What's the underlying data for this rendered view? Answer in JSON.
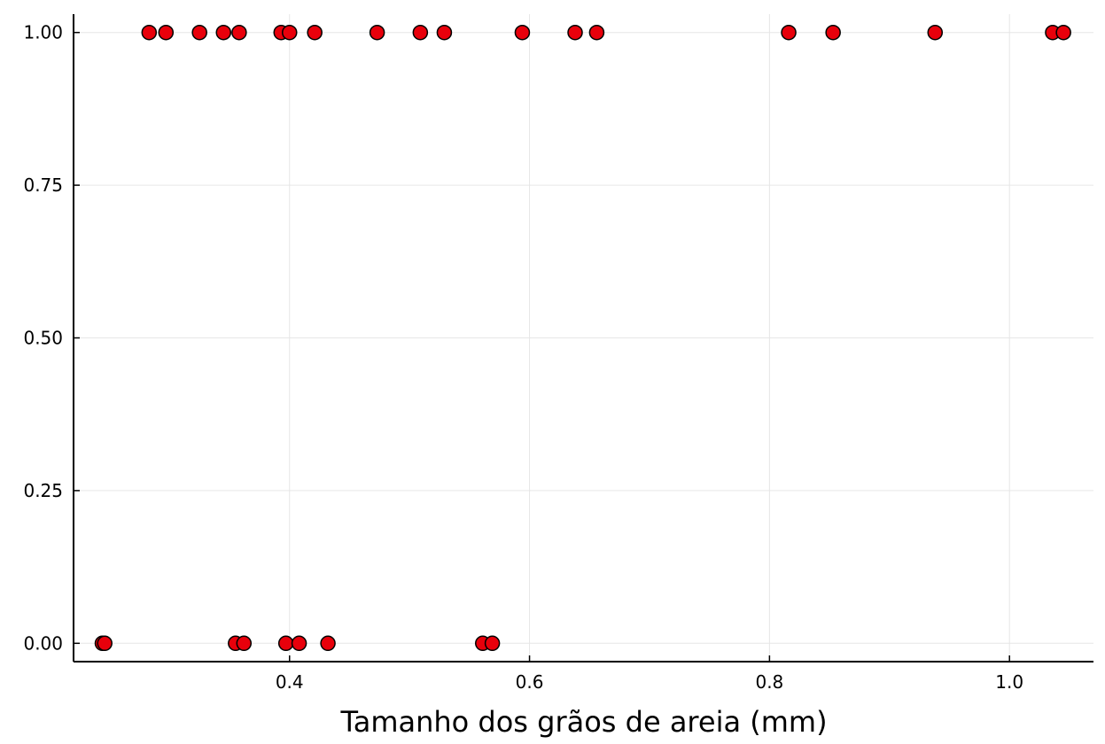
{
  "chart_data": {
    "type": "scatter",
    "title": "",
    "xlabel": "Tamanho dos grãos de areia (mm)",
    "ylabel": "",
    "xlim": [
      0.22,
      1.07
    ],
    "ylim": [
      -0.03,
      1.03
    ],
    "x_ticks": [
      0.4,
      0.6,
      0.8,
      1.0
    ],
    "x_tick_labels": [
      "0.4",
      "0.6",
      "0.8",
      "1.0"
    ],
    "y_ticks": [
      0.0,
      0.25,
      0.5,
      0.75,
      1.0
    ],
    "y_tick_labels": [
      "0.00",
      "0.25",
      "0.50",
      "0.75",
      "1.00"
    ],
    "grid": true,
    "legend": "none",
    "marker_color": "#e8000b",
    "marker_edge_color": "#000000",
    "series": [
      {
        "points": [
          {
            "x": 0.283,
            "y": 1
          },
          {
            "x": 0.297,
            "y": 1
          },
          {
            "x": 0.325,
            "y": 1
          },
          {
            "x": 0.345,
            "y": 1
          },
          {
            "x": 0.358,
            "y": 1
          },
          {
            "x": 0.393,
            "y": 1
          },
          {
            "x": 0.4,
            "y": 1
          },
          {
            "x": 0.421,
            "y": 1
          },
          {
            "x": 0.473,
            "y": 1
          },
          {
            "x": 0.509,
            "y": 1
          },
          {
            "x": 0.529,
            "y": 1
          },
          {
            "x": 0.594,
            "y": 1
          },
          {
            "x": 0.638,
            "y": 1
          },
          {
            "x": 0.656,
            "y": 1
          },
          {
            "x": 0.816,
            "y": 1
          },
          {
            "x": 0.853,
            "y": 1
          },
          {
            "x": 0.938,
            "y": 1
          },
          {
            "x": 1.036,
            "y": 1
          },
          {
            "x": 1.045,
            "y": 1
          },
          {
            "x": 0.244,
            "y": 0
          },
          {
            "x": 0.246,
            "y": 0
          },
          {
            "x": 0.355,
            "y": 0
          },
          {
            "x": 0.362,
            "y": 0
          },
          {
            "x": 0.397,
            "y": 0
          },
          {
            "x": 0.408,
            "y": 0
          },
          {
            "x": 0.432,
            "y": 0
          },
          {
            "x": 0.561,
            "y": 0
          },
          {
            "x": 0.569,
            "y": 0
          }
        ]
      }
    ]
  }
}
